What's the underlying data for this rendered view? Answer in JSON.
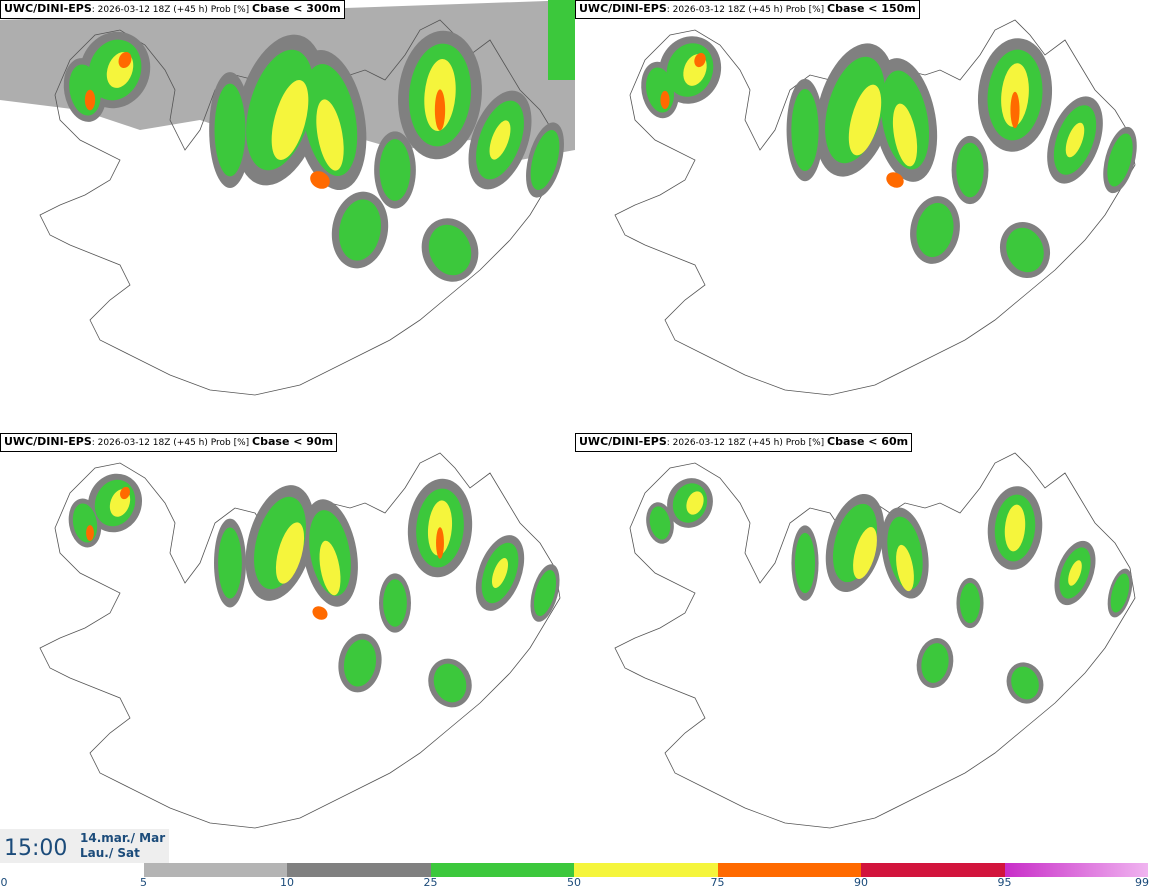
{
  "panels": [
    {
      "model": "UWC/DINI-EPS",
      "run": ": 2026-03-12 18Z (+45 h) Prob [%]",
      "threshold": "Cbase < 300m",
      "coverage": 4
    },
    {
      "model": "UWC/DINI-EPS",
      "run": ": 2026-03-12 18Z (+45 h) Prob [%]",
      "threshold": "Cbase < 150m",
      "coverage": 3
    },
    {
      "model": "UWC/DINI-EPS",
      "run": ": 2026-03-12 18Z (+45 h) Prob [%]",
      "threshold": "Cbase < 90m",
      "coverage": 2
    },
    {
      "model": "UWC/DINI-EPS",
      "run": ": 2026-03-12 18Z (+45 h) Prob [%]",
      "threshold": "Cbase < 60m",
      "coverage": 1
    }
  ],
  "valid_time": {
    "time": "15:00",
    "date": "14.mar./ Mar",
    "day": "Lau./ Sat"
  },
  "colorbar": {
    "ticks": [
      "0",
      "5",
      "10",
      "25",
      "50",
      "75",
      "90",
      "95",
      "99"
    ],
    "colors": [
      "#ffffff",
      "#b4b4b4",
      "#808080",
      "#3cc83c",
      "#f5f53c",
      "#ff6a00",
      "#d2143c",
      "#c82dc8"
    ]
  }
}
